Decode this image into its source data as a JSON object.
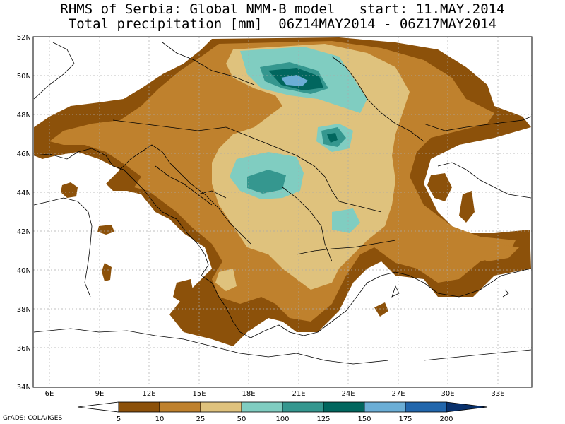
{
  "title": {
    "line1": "RHMS of Serbia: Global NMM-B model   start: 11.MAY.2014",
    "line2": "Total precipitation [mm]  06Z14MAY2014 - 06Z17MAY2014"
  },
  "lat_labels": [
    "52N",
    "50N",
    "48N",
    "46N",
    "44N",
    "42N",
    "40N",
    "38N",
    "36N",
    "34N"
  ],
  "lon_labels": [
    "6E",
    "9E",
    "12E",
    "15E",
    "18E",
    "21E",
    "24E",
    "27E",
    "30E",
    "33E"
  ],
  "colorbar": {
    "tick_labels": [
      "5",
      "10",
      "25",
      "50",
      "100",
      "125",
      "150",
      "175",
      "200"
    ],
    "colors": [
      "#ffffff",
      "#8c510a",
      "#bf812d",
      "#dfc27d",
      "#80cdc1",
      "#35978f",
      "#01665e",
      "#6baed6",
      "#2166ac",
      "#08306b"
    ]
  },
  "credit": "GrADS: COLA/IGES",
  "colors": {
    "level1": "#8c510a",
    "level2": "#bf812d",
    "level3": "#dfc27d",
    "level4": "#80cdc1",
    "level5": "#35978f",
    "level6": "#01665e",
    "level7": "#6baed6"
  }
}
